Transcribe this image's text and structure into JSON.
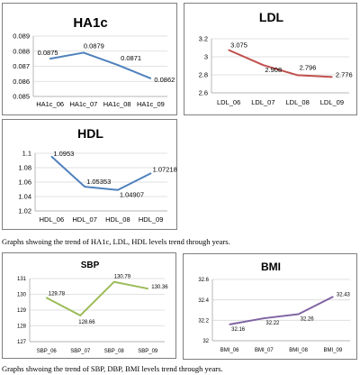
{
  "chart_data": [
    {
      "type": "line",
      "title": "HA1c",
      "categories": [
        "HA1c_06",
        "HA1c_07",
        "HA1c_08",
        "HA1c_09"
      ],
      "values": [
        0.0875,
        0.0879,
        0.0871,
        0.0862
      ],
      "labels": [
        "0.0875",
        "0.0879",
        "0.0871",
        "0.0862"
      ],
      "ylim": [
        0.085,
        0.089
      ],
      "yticks": [
        0.085,
        0.086,
        0.087,
        0.088,
        0.089
      ],
      "ytick_labels": [
        "0.085",
        "0.086",
        "0.087",
        "0.088",
        "0.089"
      ],
      "color": "#4f81bd",
      "grid": true
    },
    {
      "type": "line",
      "title": "LDL",
      "categories": [
        "LDL_06",
        "LDL_07",
        "LDL_08",
        "LDL_09"
      ],
      "values": [
        3.075,
        2.908,
        2.796,
        2.776
      ],
      "labels": [
        "3.075",
        "2.908",
        "2.796",
        "2.776"
      ],
      "ylim": [
        2.6,
        3.2
      ],
      "yticks": [
        2.6,
        2.8,
        3.0,
        3.2
      ],
      "ytick_labels": [
        "2.6",
        "2.8",
        "3",
        "3.2"
      ],
      "color": "#c0504d",
      "grid": true
    },
    {
      "type": "line",
      "title": "HDL",
      "categories": [
        "HDL_06",
        "HDL_07",
        "HDL_08",
        "HDL_09"
      ],
      "values": [
        1.0953,
        1.05353,
        1.04907,
        1.07218
      ],
      "labels": [
        "1.0953",
        "1.05353",
        "1.04907",
        "1.07218"
      ],
      "ylim": [
        1.02,
        1.1
      ],
      "yticks": [
        1.02,
        1.04,
        1.06,
        1.08,
        1.1
      ],
      "ytick_labels": [
        "1.02",
        "1.04",
        "1.06",
        "1.08",
        "1.1"
      ],
      "color": "#4f81bd",
      "grid": true
    },
    {
      "type": "line",
      "title": "SBP",
      "categories": [
        "SBP_06",
        "SBP_07",
        "SBP_08",
        "SBP_09"
      ],
      "values": [
        129.78,
        128.66,
        130.79,
        130.36
      ],
      "labels": [
        "129.78",
        "128.66",
        "130.79",
        "130.36"
      ],
      "ylim": [
        127,
        131
      ],
      "yticks": [
        127,
        128,
        129,
        130,
        131
      ],
      "ytick_labels": [
        "127",
        "128",
        "129",
        "130",
        "131"
      ],
      "color": "#9bbb59",
      "grid": true
    },
    {
      "type": "line",
      "title": "BMI",
      "categories": [
        "BMI_06",
        "BMI_07",
        "BMI_08",
        "BMI_09"
      ],
      "values": [
        32.16,
        32.22,
        32.26,
        32.43
      ],
      "labels": [
        "32.16",
        "32.22",
        "32.26",
        "32.43"
      ],
      "ylim": [
        32,
        32.6
      ],
      "yticks": [
        32,
        32.2,
        32.4,
        32.6
      ],
      "ytick_labels": [
        "32",
        "32.2",
        "32.4",
        "32.6"
      ],
      "color": "#8064a2",
      "grid": true
    }
  ],
  "captions": {
    "first": "Graphs shwoing the trend of  HA1c, LDL, HDL levels trend through years.",
    "second": "Graphs shwoing the trend of  SBP, DBP, BMI levels trend through years."
  }
}
